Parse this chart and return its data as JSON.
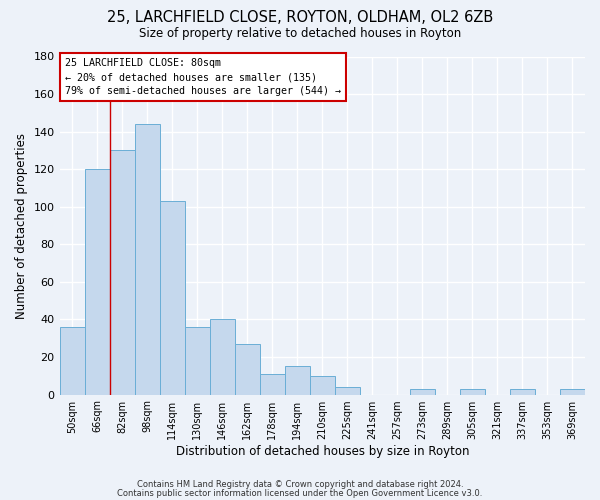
{
  "title": "25, LARCHFIELD CLOSE, ROYTON, OLDHAM, OL2 6ZB",
  "subtitle": "Size of property relative to detached houses in Royton",
  "xlabel": "Distribution of detached houses by size in Royton",
  "ylabel": "Number of detached properties",
  "bar_labels": [
    "50sqm",
    "66sqm",
    "82sqm",
    "98sqm",
    "114sqm",
    "130sqm",
    "146sqm",
    "162sqm",
    "178sqm",
    "194sqm",
    "210sqm",
    "225sqm",
    "241sqm",
    "257sqm",
    "273sqm",
    "289sqm",
    "305sqm",
    "321sqm",
    "337sqm",
    "353sqm",
    "369sqm"
  ],
  "bar_values": [
    36,
    120,
    130,
    144,
    103,
    36,
    40,
    27,
    11,
    15,
    10,
    4,
    0,
    0,
    3,
    0,
    3,
    0,
    3,
    0,
    3
  ],
  "bar_color": "#c5d8ed",
  "bar_edge_color": "#6aaed6",
  "marker_line_color": "#cc0000",
  "annotation_line1": "25 LARCHFIELD CLOSE: 80sqm",
  "annotation_line2": "← 20% of detached houses are smaller (135)",
  "annotation_line3": "79% of semi-detached houses are larger (544) →",
  "annotation_box_edge_color": "#cc0000",
  "ylim": [
    0,
    180
  ],
  "yticks": [
    0,
    20,
    40,
    60,
    80,
    100,
    120,
    140,
    160,
    180
  ],
  "footer1": "Contains HM Land Registry data © Crown copyright and database right 2024.",
  "footer2": "Contains public sector information licensed under the Open Government Licence v3.0.",
  "bg_color": "#edf2f9",
  "grid_color": "#ffffff"
}
